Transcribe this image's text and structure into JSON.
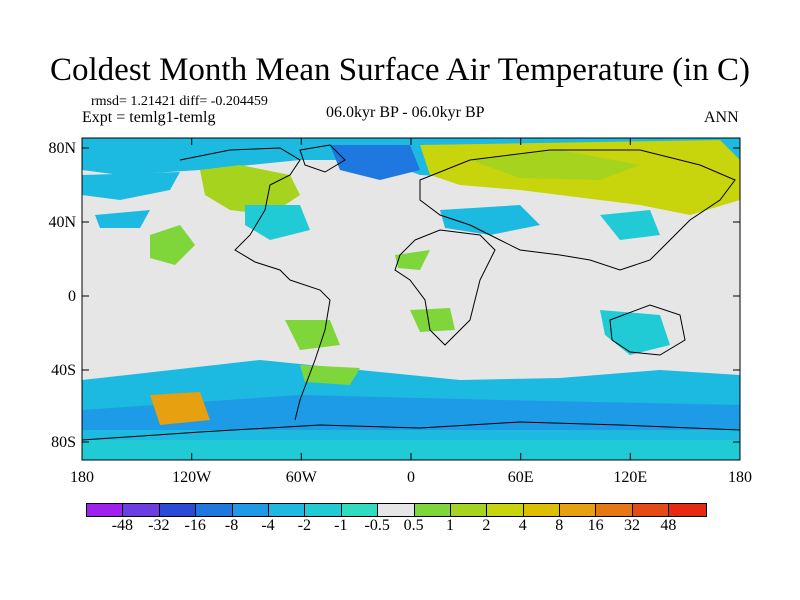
{
  "title": "Coldest Month Mean Surface Air Temperature (in C)",
  "stats": "rmsd= 1.21421 diff= -0.204459",
  "experiment": "Expt = temlg1-temlg",
  "period": "06.0kyr BP - 06.0kyr BP",
  "season": "ANN",
  "lat_labels": [
    "80N",
    "40N",
    "0",
    "40S",
    "80S"
  ],
  "lon_labels": [
    "180",
    "120W",
    "60W",
    "0",
    "60E",
    "120E",
    "180"
  ],
  "colorbar": {
    "labels": [
      "-48",
      "-32",
      "-16",
      "-8",
      "-4",
      "-2",
      "-1",
      "-0.5",
      "0.5",
      "1",
      "2",
      "4",
      "8",
      "16",
      "32",
      "48"
    ],
    "colors": [
      "#a020f0",
      "#6a3ee0",
      "#2a4bd8",
      "#1e78e0",
      "#1e9be6",
      "#1cb9e0",
      "#20cbd6",
      "#30dcc0",
      "#e6e6e6",
      "#7ed63a",
      "#a6d41e",
      "#c8d40c",
      "#dcc000",
      "#e6a010",
      "#e67814",
      "#e64a14",
      "#e62a10"
    ]
  },
  "map": {
    "background_color": "#e6e6e6",
    "coastline_color": "#000000"
  }
}
